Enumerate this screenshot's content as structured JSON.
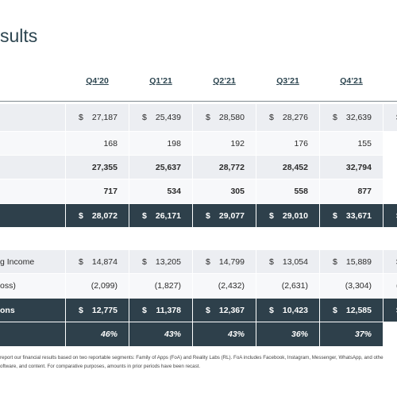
{
  "header": {
    "title": "sults"
  },
  "columns": [
    "Q4’20",
    "Q1’21",
    "Q2’21",
    "Q3’21",
    "Q4’21"
  ],
  "table1": {
    "rows": [
      {
        "cells": [
          [
            "$",
            "27,187"
          ],
          [
            "$",
            "25,439"
          ],
          [
            "$",
            "28,580"
          ],
          [
            "$",
            "28,276"
          ],
          [
            "$",
            "32,639"
          ],
          [
            "$"
          ]
        ]
      },
      {
        "cells": [
          "168",
          "198",
          "192",
          "176",
          "155"
        ]
      },
      {
        "cells": [
          "27,355",
          "25,637",
          "28,772",
          "28,452",
          "32,794"
        ]
      },
      {
        "cells": [
          "717",
          "534",
          "305",
          "558",
          "877"
        ]
      },
      {
        "cells": [
          [
            "$",
            "28,072"
          ],
          [
            "$",
            "26,171"
          ],
          [
            "$",
            "29,077"
          ],
          [
            "$",
            "29,010"
          ],
          [
            "$",
            "33,671"
          ],
          [
            "$"
          ]
        ]
      }
    ]
  },
  "table2": {
    "rows": [
      {
        "label": "g Income",
        "cells": [
          [
            "$",
            "14,874"
          ],
          [
            "$",
            "13,205"
          ],
          [
            "$",
            "14,799"
          ],
          [
            "$",
            "13,054"
          ],
          [
            "$",
            "15,889"
          ],
          [
            "$"
          ]
        ]
      },
      {
        "label": "oss)",
        "cells": [
          "(2,099)",
          "(1,827)",
          "(2,432)",
          "(2,631)",
          "(3,304)",
          [
            "("
          ]
        ]
      },
      {
        "label": "ons",
        "cells": [
          [
            "$",
            "12,775"
          ],
          [
            "$",
            "11,378"
          ],
          [
            "$",
            "12,367"
          ],
          [
            "$",
            "10,423"
          ],
          [
            "$",
            "12,585"
          ],
          [
            "$"
          ]
        ]
      },
      {
        "cells": [
          "46%",
          "43%",
          "43%",
          "36%",
          "37%"
        ]
      }
    ]
  },
  "footnote": [
    "report our financial results based on two reportable segments: Family of Apps (FoA) and Reality Labs (RL). FoA includes Facebook, Instagram, Messenger, WhatsApp, and othe",
    "oftware, and content. For comparative purposes, amounts in prior periods have been recast."
  ]
}
